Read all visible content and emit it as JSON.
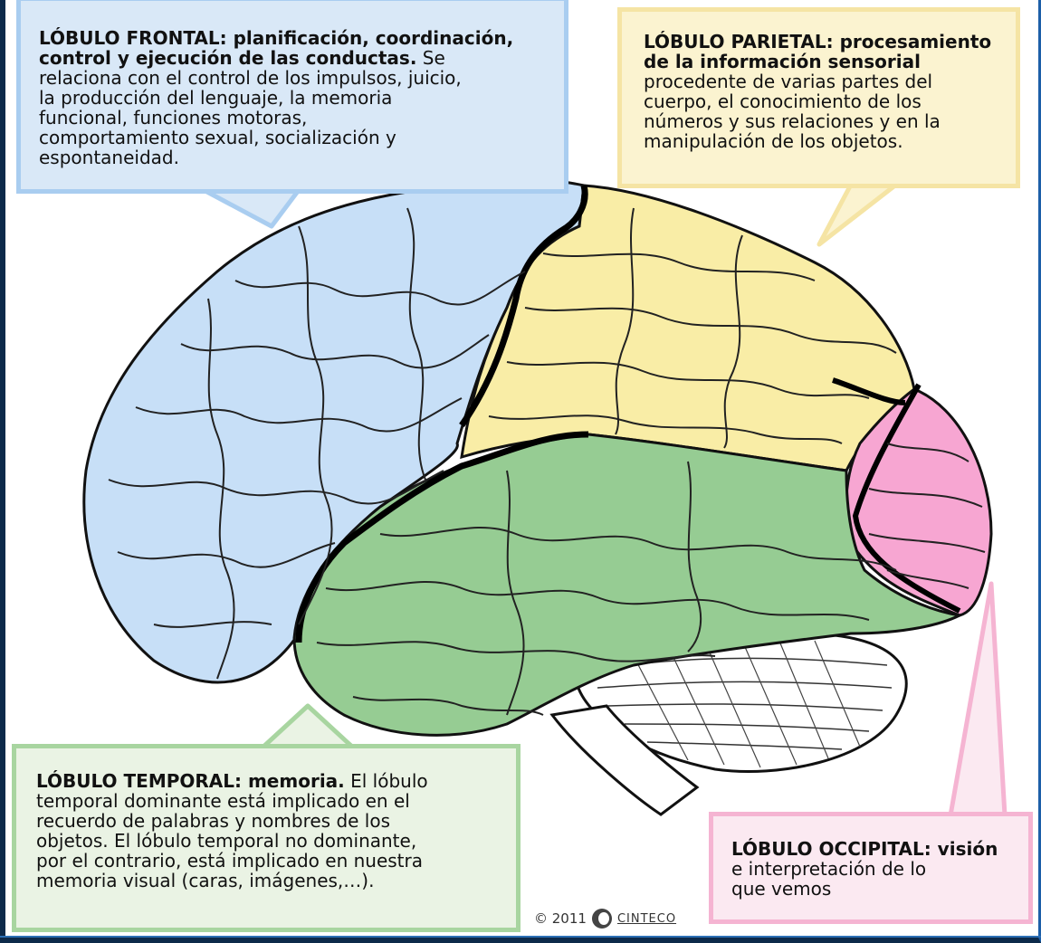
{
  "frontal": {
    "title": "LÓBULO FRONTAL: planificación, coordinación,\ncontrol y ejecución de las conductas.",
    "body": " Se\nrelaciona con el control de los impulsos,  juicio,\nla producción del lenguaje, la memoria\nfuncional, funciones motoras,\ncomportamiento sexual, socialización y\nespontaneidad.",
    "color": "#c7dff7"
  },
  "parietal": {
    "title": "LÓBULO PARIETAL: procesamiento\nde la información sensorial",
    "body": "\nprocedente de varias partes del\ncuerpo, el conocimiento de los\nnúmeros y sus relaciones y en la\nmanipulación de los objetos.",
    "color": "#f9eda6"
  },
  "temporal": {
    "title": "LÓBULO TEMPORAL: memoria.",
    "body": " El lóbulo\ntemporal dominante está implicado en el\nrecuerdo de palabras y nombres de los\nobjetos. El lóbulo temporal no dominante,\npor el contrario, está implicado en nuestra\nmemoria visual (caras, imágenes,…).",
    "color": "#96cc93"
  },
  "occipital": {
    "title": "LÓBULO OCCIPITAL: visión",
    "body": "\ne interpretación de lo\nque vemos",
    "color": "#f7a6d2"
  },
  "footer": {
    "copyright": "© 2011",
    "brand": "CINTECO"
  }
}
